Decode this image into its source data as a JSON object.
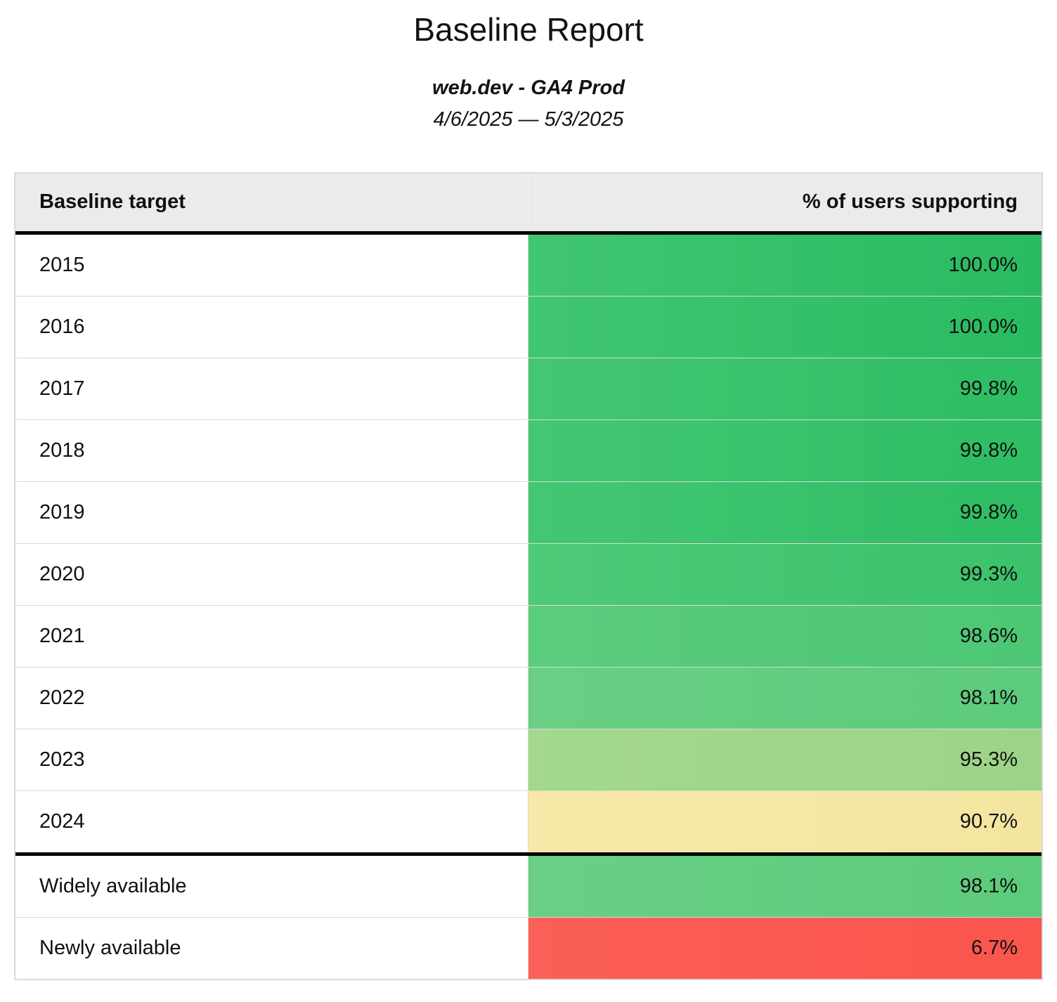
{
  "page": {
    "title": "Baseline Report",
    "subtitle": "web.dev - GA4 Prod",
    "date_range": "4/6/2025 — 5/3/2025"
  },
  "table": {
    "columns": [
      {
        "label": "Baseline target"
      },
      {
        "label": "% of users supporting"
      }
    ],
    "rows": [
      {
        "target": "2015",
        "value": "100.0%",
        "color_left": "#41c672",
        "color_right": "#29bb60",
        "section_start": false
      },
      {
        "target": "2016",
        "value": "100.0%",
        "color_left": "#41c672",
        "color_right": "#29bb60",
        "section_start": false
      },
      {
        "target": "2017",
        "value": "99.8%",
        "color_left": "#44c773",
        "color_right": "#2dbd63",
        "section_start": false
      },
      {
        "target": "2018",
        "value": "99.8%",
        "color_left": "#44c773",
        "color_right": "#2dbd63",
        "section_start": false
      },
      {
        "target": "2019",
        "value": "99.8%",
        "color_left": "#44c773",
        "color_right": "#2dbd63",
        "section_start": false
      },
      {
        "target": "2020",
        "value": "99.3%",
        "color_left": "#4ec977",
        "color_right": "#3bc26b",
        "section_start": false
      },
      {
        "target": "2021",
        "value": "98.6%",
        "color_left": "#5ccc7d",
        "color_right": "#4cc773",
        "section_start": false
      },
      {
        "target": "2022",
        "value": "98.1%",
        "color_left": "#69cf85",
        "color_right": "#5ccb7b",
        "section_start": false
      },
      {
        "target": "2023",
        "value": "95.3%",
        "color_left": "#a3d88d",
        "color_right": "#9cd487",
        "section_start": false
      },
      {
        "target": "2024",
        "value": "90.7%",
        "color_left": "#f8e9a8",
        "color_right": "#f3e5a0",
        "section_start": false
      },
      {
        "target": "Widely available",
        "value": "98.1%",
        "color_left": "#69cf85",
        "color_right": "#5ccb7b",
        "section_start": true
      },
      {
        "target": "Newly available",
        "value": "6.7%",
        "color_left": "#fb5f57",
        "color_right": "#fb554d",
        "section_start": false
      }
    ]
  },
  "colors": {
    "header_bg": "#ebebeb",
    "grid_border": "#d9d9d9",
    "section_border": "#000000",
    "text": "#111111"
  }
}
